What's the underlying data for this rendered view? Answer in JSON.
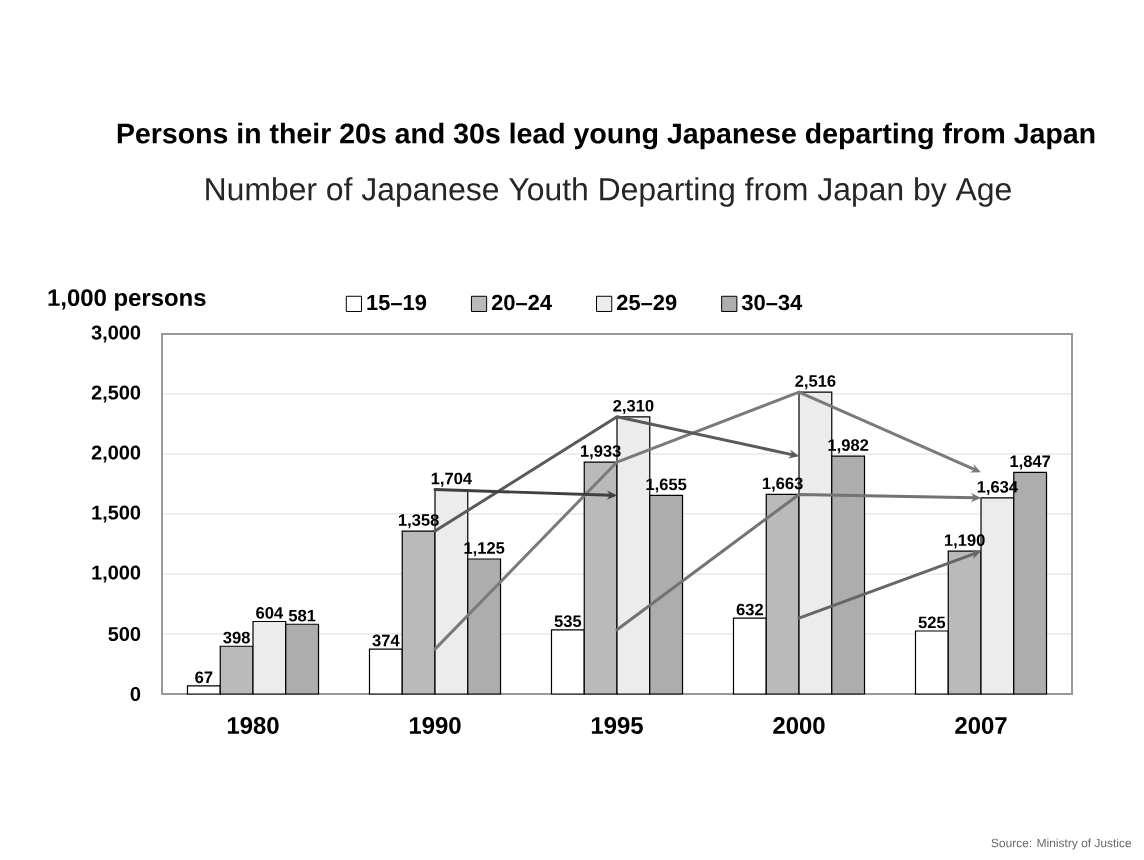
{
  "chart_data": {
    "type": "bar",
    "title": "Persons in their 20s and 30s lead young Japanese departing from Japan",
    "subtitle": "Number of Japanese Youth Departing from Japan by Age",
    "ylabel": "1,000 persons",
    "annotations": [
      "Source: Ministry of Justice"
    ],
    "categories": [
      "1980",
      "1990",
      "1995",
      "2000",
      "2007"
    ],
    "series": [
      {
        "name": "15–19",
        "color": "#ffffff",
        "values": [
          67,
          374,
          535,
          632,
          525
        ],
        "value_labels": [
          "67",
          "374",
          "535",
          "632",
          "525"
        ]
      },
      {
        "name": "20–24",
        "color": "#bababa",
        "values": [
          398,
          1358,
          1933,
          1663,
          1190
        ],
        "value_labels": [
          "398",
          "1,358",
          "1,933",
          "1,663",
          "1,190"
        ]
      },
      {
        "name": "25–29",
        "color": "#ececec",
        "values": [
          604,
          1704,
          2310,
          2516,
          1634
        ],
        "value_labels": [
          "604",
          "1,704",
          "2,310",
          "2,516",
          "1,634"
        ]
      },
      {
        "name": "30–34",
        "color": "#adadad",
        "values": [
          581,
          1125,
          1655,
          1982,
          1847
        ],
        "value_labels": [
          "581",
          "1,125",
          "1,655",
          "1,982",
          "1,847"
        ]
      },
      {
        "type": "line",
        "color": "#7a7a7a",
        "values": [
          null,
          374,
          1933,
          2516,
          1847
        ]
      },
      {
        "type": "line",
        "color": "#5a5a5a",
        "values": [
          null,
          1358,
          2310,
          1982,
          null
        ]
      },
      {
        "type": "line",
        "color": "#404040",
        "values": [
          null,
          1704,
          1655,
          null,
          null
        ]
      },
      {
        "type": "line",
        "color": "#737373",
        "values": [
          null,
          null,
          535,
          1663,
          1634
        ]
      },
      {
        "type": "line",
        "color": "#666666",
        "values": [
          null,
          null,
          null,
          632,
          1190
        ]
      }
    ],
    "ylim": [
      0,
      3000
    ],
    "yticks": [
      0,
      500,
      {
        "value": 1000,
        "label": "1,000"
      },
      {
        "value": 1500,
        "label": "1,500"
      },
      {
        "value": 2000,
        "label": "2,000"
      },
      {
        "value": 2500,
        "label": "2,500"
      },
      {
        "value": 3000,
        "label": "3,000"
      }
    ],
    "grid": "y",
    "legend": "top"
  }
}
